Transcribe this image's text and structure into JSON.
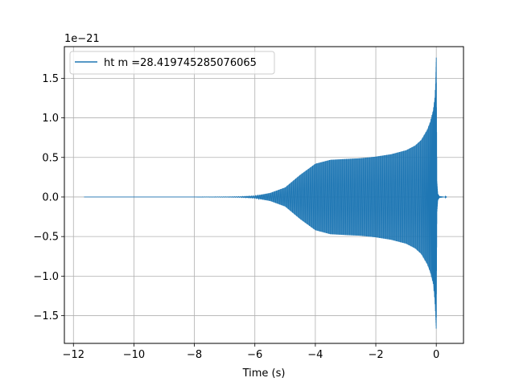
{
  "chart_data": {
    "type": "line",
    "title": "",
    "xlabel": "Time (s)",
    "ylabel": "",
    "y_offset_label": "1e−21",
    "y_scale_exponent": -21,
    "xlim": [
      -12.3,
      0.9
    ],
    "ylim": [
      -1.85,
      1.9
    ],
    "x_ticks": [
      -12,
      -10,
      -8,
      -6,
      -4,
      -2,
      0
    ],
    "x_tick_labels": [
      "−12",
      "−10",
      "−8",
      "−6",
      "−4",
      "−2",
      "0"
    ],
    "y_ticks": [
      -1.5,
      -1.0,
      -0.5,
      0.0,
      0.5,
      1.0,
      1.5
    ],
    "y_tick_labels": [
      "−1.5",
      "−1.0",
      "−0.5",
      "0.0",
      "0.5",
      "1.0",
      "1.5"
    ],
    "grid": true,
    "legend_position": "top-left",
    "series": [
      {
        "name": "ht m =28.419745285076065",
        "color": "#1f77b4",
        "x_start": -11.65,
        "x_end": 0.35,
        "envelope": {
          "t": [
            -11.65,
            -8.0,
            -7.0,
            -6.5,
            -6.0,
            -5.5,
            -5.0,
            -4.5,
            -4.0,
            -3.5,
            -3.0,
            -2.5,
            -2.0,
            -1.5,
            -1.0,
            -0.7,
            -0.5,
            -0.3,
            -0.2,
            -0.1,
            -0.05,
            -0.02,
            0.0,
            0.02,
            0.05,
            0.1,
            0.35
          ],
          "upper": [
            0.0,
            0.0,
            0.003,
            0.006,
            0.015,
            0.05,
            0.12,
            0.28,
            0.42,
            0.47,
            0.48,
            0.49,
            0.51,
            0.54,
            0.59,
            0.65,
            0.72,
            0.85,
            0.95,
            1.1,
            1.25,
            1.45,
            1.77,
            0.2,
            0.04,
            0.01,
            0.0
          ],
          "lower": [
            0.0,
            0.0,
            -0.003,
            -0.006,
            -0.015,
            -0.05,
            -0.12,
            -0.28,
            -0.42,
            -0.47,
            -0.48,
            -0.49,
            -0.51,
            -0.54,
            -0.59,
            -0.65,
            -0.72,
            -0.85,
            -0.95,
            -1.1,
            -1.3,
            -1.5,
            -1.68,
            -0.2,
            -0.04,
            -0.01,
            0.0
          ]
        },
        "oscillation_spacing_s": 0.07
      }
    ]
  }
}
